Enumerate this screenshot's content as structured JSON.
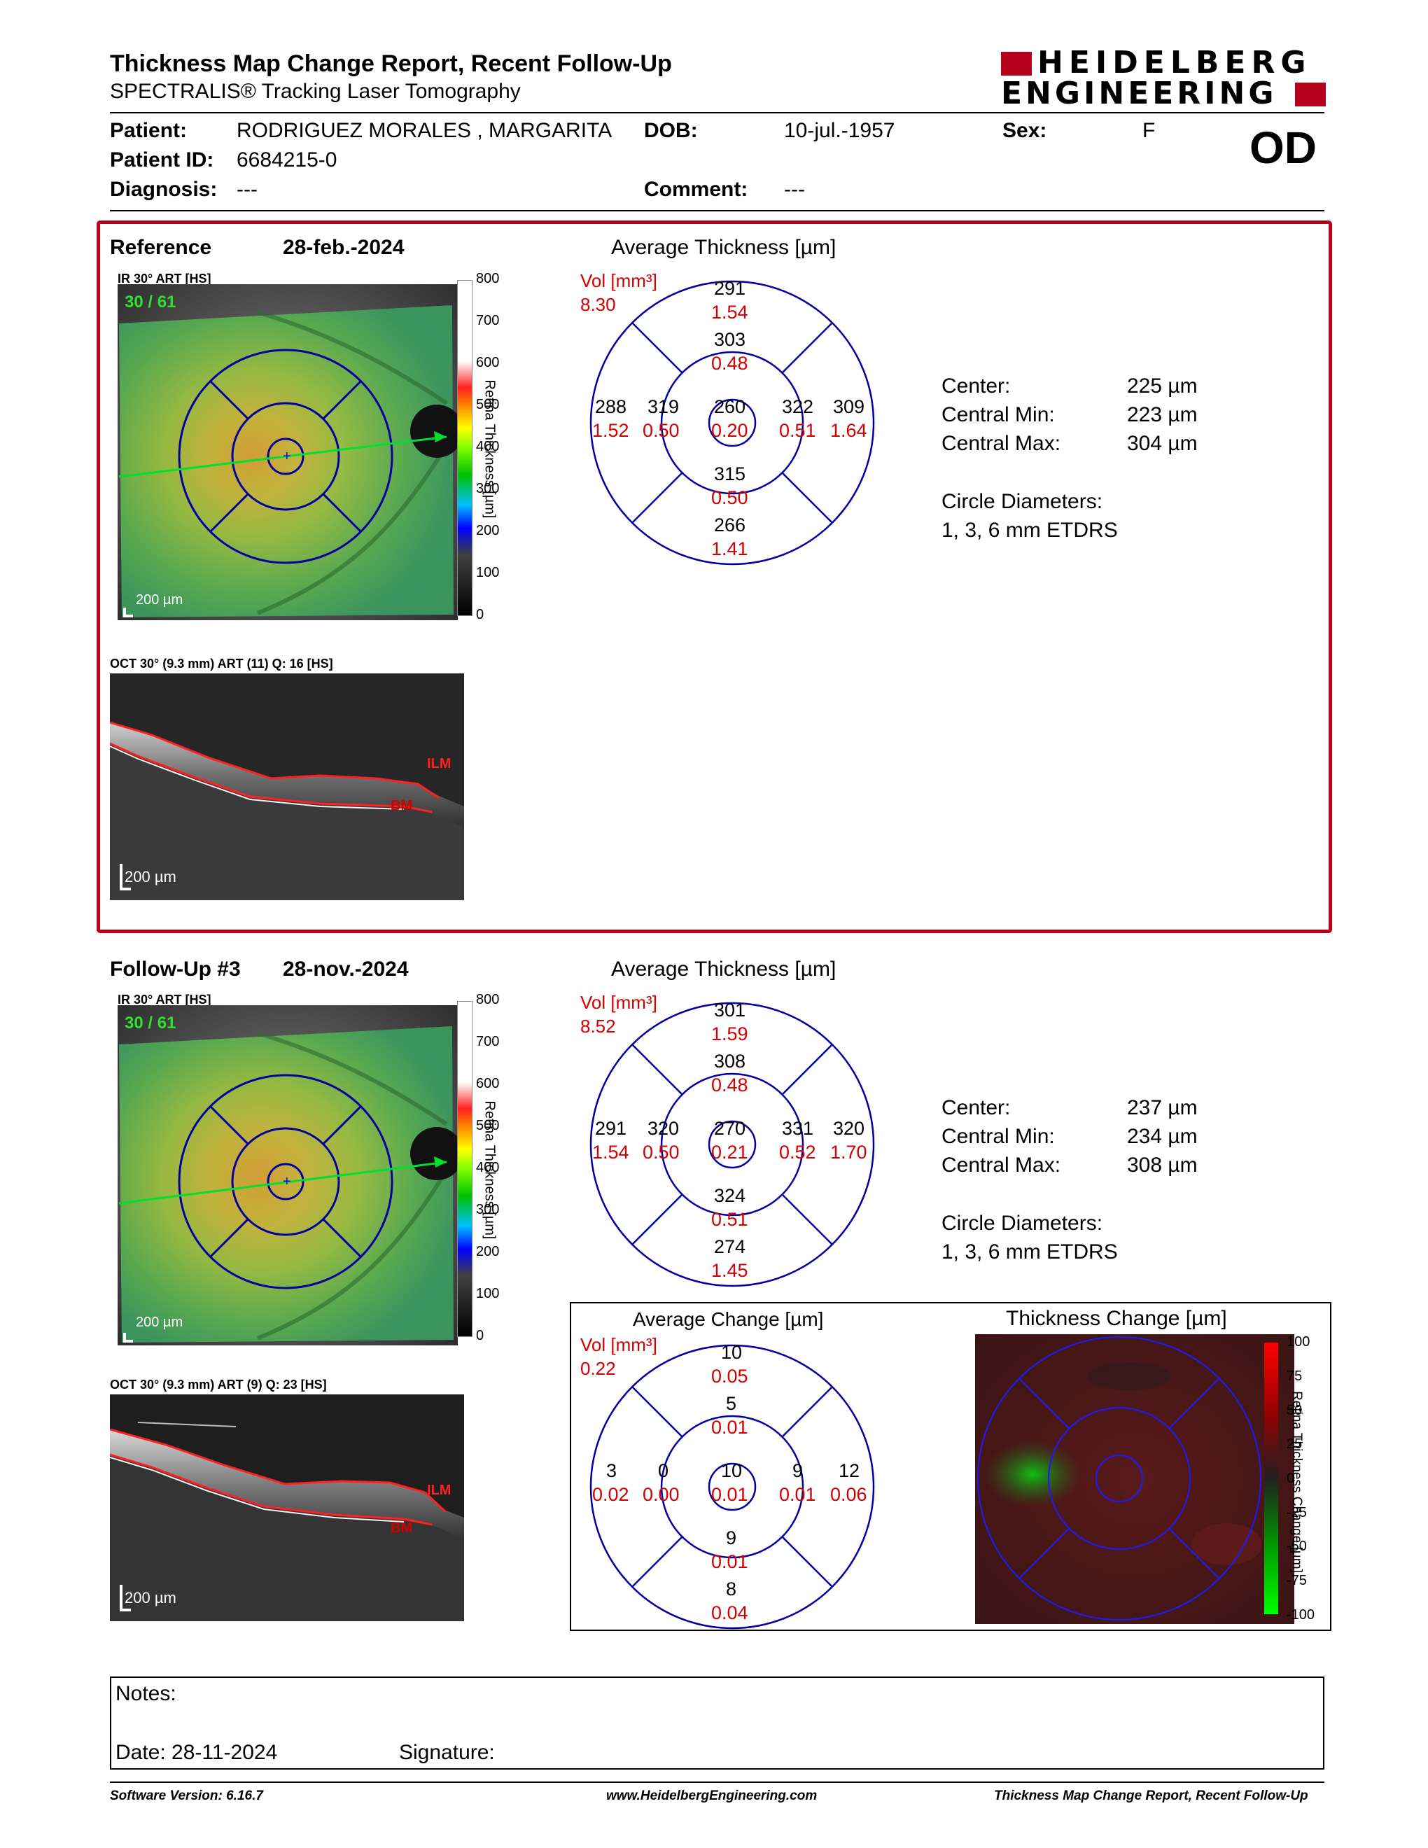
{
  "report": {
    "title": "Thickness Map Change Report, Recent Follow-Up",
    "subtitle": "SPECTRALIS® Tracking Laser Tomography",
    "logo_line1": "HEIDELBERG",
    "logo_line2": "ENGINEERING",
    "eye": "OD"
  },
  "patient": {
    "patient_label": "Patient:",
    "patient_value": "RODRIGUEZ MORALES , MARGARITA",
    "dob_label": "DOB:",
    "dob_value": "10-jul.-1957",
    "sex_label": "Sex:",
    "sex_value": "F",
    "id_label": "Patient ID:",
    "id_value": "6684215-0",
    "diagnosis_label": "Diagnosis:",
    "diagnosis_value": "---",
    "comment_label": "Comment:",
    "comment_value": "---"
  },
  "reference": {
    "label": "Reference",
    "date": "28-feb.-2024",
    "ir_label": "IR 30° ART [HS]",
    "frame_count": "30 / 61",
    "scale": "200 µm",
    "colorbar_title": "Retina Thickness [µm]",
    "colorbar_ticks": [
      "800",
      "700",
      "600",
      "500",
      "400",
      "300",
      "200",
      "100",
      "0"
    ],
    "oct_label": "OCT 30° (9.3 mm) ART (11) Q: 16 [HS]",
    "oct_scale": "200 µm",
    "ilm": "ILM",
    "bm": "BM",
    "etdrs_title": "Average Thickness [µm]",
    "vol_label": "Vol [mm³]",
    "vol_total": "8.30",
    "sectors": {
      "outer_sup": [
        "291",
        "1.54"
      ],
      "inner_sup": [
        "303",
        "0.48"
      ],
      "outer_temp": [
        "288",
        "1.52"
      ],
      "inner_temp": [
        "319",
        "0.50"
      ],
      "center": [
        "260",
        "0.20"
      ],
      "inner_nas": [
        "322",
        "0.51"
      ],
      "outer_nas": [
        "309",
        "1.64"
      ],
      "inner_inf": [
        "315",
        "0.50"
      ],
      "outer_inf": [
        "266",
        "1.41"
      ]
    },
    "stats": [
      {
        "label": "Center:",
        "value": "225 µm"
      },
      {
        "label": "Central Min:",
        "value": "223 µm"
      },
      {
        "label": "Central Max:",
        "value": "304 µm"
      }
    ],
    "circle_label": "Circle Diameters:",
    "circle_value": "1, 3, 6 mm ETDRS"
  },
  "followup": {
    "label": "Follow-Up #3",
    "date": "28-nov.-2024",
    "ir_label": "IR 30° ART [HS]",
    "frame_count": "30 / 61",
    "scale": "200 µm",
    "colorbar_title": "Retina Thickness [µm]",
    "colorbar_ticks": [
      "800",
      "700",
      "600",
      "500",
      "400",
      "300",
      "200",
      "100",
      "0"
    ],
    "oct_label": "OCT 30° (9.3 mm) ART (9) Q: 23 [HS]",
    "oct_scale": "200 µm",
    "ilm": "ILM",
    "bm": "BM",
    "etdrs_title": "Average Thickness [µm]",
    "vol_label": "Vol [mm³]",
    "vol_total": "8.52",
    "sectors": {
      "outer_sup": [
        "301",
        "1.59"
      ],
      "inner_sup": [
        "308",
        "0.48"
      ],
      "outer_temp": [
        "291",
        "1.54"
      ],
      "inner_temp": [
        "320",
        "0.50"
      ],
      "center": [
        "270",
        "0.21"
      ],
      "inner_nas": [
        "331",
        "0.52"
      ],
      "outer_nas": [
        "320",
        "1.70"
      ],
      "inner_inf": [
        "324",
        "0.51"
      ],
      "outer_inf": [
        "274",
        "1.45"
      ]
    },
    "stats": [
      {
        "label": "Center:",
        "value": "237 µm"
      },
      {
        "label": "Central Min:",
        "value": "234 µm"
      },
      {
        "label": "Central Max:",
        "value": "308 µm"
      }
    ],
    "circle_label": "Circle Diameters:",
    "circle_value": "1, 3, 6 mm ETDRS"
  },
  "change": {
    "etdrs_title": "Average Change [µm]",
    "vol_label": "Vol [mm³]",
    "vol_total": "0.22",
    "sectors": {
      "outer_sup": [
        "10",
        "0.05"
      ],
      "inner_sup": [
        "5",
        "0.01"
      ],
      "outer_temp": [
        "3",
        "0.02"
      ],
      "inner_temp": [
        "0",
        "0.00"
      ],
      "center": [
        "10",
        "0.01"
      ],
      "inner_nas": [
        "9",
        "0.01"
      ],
      "outer_nas": [
        "12",
        "0.06"
      ],
      "inner_inf": [
        "9",
        "0.01"
      ],
      "outer_inf": [
        "8",
        "0.04"
      ]
    },
    "map_title": "Thickness Change [µm]",
    "colorbar_title": "Retina Thickness Change [µm]",
    "colorbar_ticks": [
      "100",
      "75",
      "50",
      "25",
      "0",
      "-25",
      "-50",
      "-75",
      "-100"
    ]
  },
  "notes": {
    "notes_label": "Notes:",
    "date_label": "Date: 28-11-2024",
    "signature_label": "Signature:"
  },
  "footer": {
    "software": "Software Version: 6.16.7",
    "website": "www.HeidelbergEngineering.com",
    "report_name": "Thickness Map Change Report, Recent Follow-Up"
  },
  "colors": {
    "accent_red": "#b3001b",
    "volume_red": "#d40000",
    "grid_blue": "#0000a0"
  }
}
